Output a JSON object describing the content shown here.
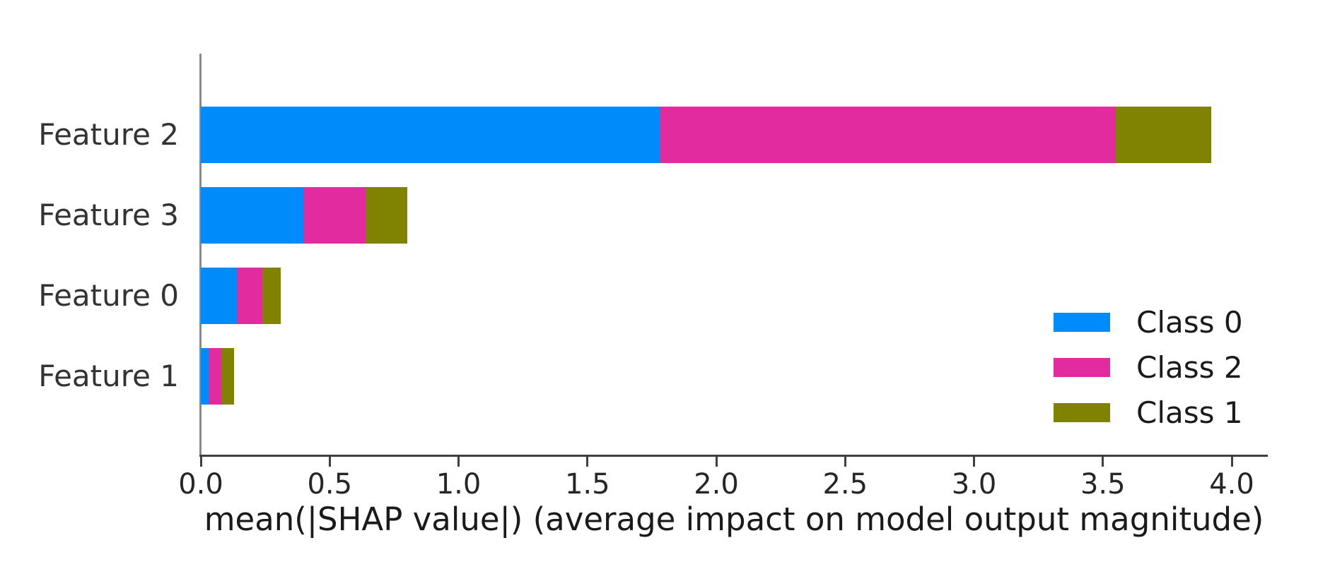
{
  "chart_data": {
    "type": "bar",
    "orientation": "horizontal",
    "stacked": true,
    "title": "",
    "xlabel": "mean(|SHAP value|) (average impact on model output magnitude)",
    "ylabel": "",
    "categories": [
      "Feature 2",
      "Feature 3",
      "Feature 0",
      "Feature 1"
    ],
    "series": [
      {
        "name": "Class 0",
        "color": "#008bfb",
        "values": [
          1.78,
          0.4,
          0.14,
          0.03
        ]
      },
      {
        "name": "Class 2",
        "color": "#e32ba0",
        "values": [
          1.77,
          0.24,
          0.1,
          0.05
        ]
      },
      {
        "name": "Class 1",
        "color": "#808201",
        "values": [
          0.37,
          0.16,
          0.07,
          0.05
        ]
      }
    ],
    "x_ticks": [
      0.0,
      0.5,
      1.0,
      1.5,
      2.0,
      2.5,
      3.0,
      3.5,
      4.0
    ],
    "x_tick_format_decimals": 1,
    "xlim": [
      0,
      4.14
    ],
    "grid": false,
    "legend": {
      "entries": [
        "Class 0",
        "Class 2",
        "Class 1"
      ],
      "position": "right-middle",
      "frame": false
    },
    "bar_height_fraction": 0.7
  }
}
